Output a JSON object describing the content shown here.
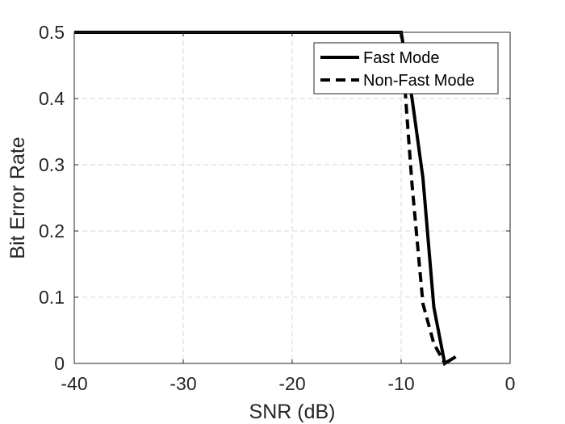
{
  "chart_data": {
    "type": "line",
    "xlabel": "SNR (dB)",
    "ylabel": "Bit Error Rate",
    "xlim": [
      -40,
      0
    ],
    "ylim": [
      0,
      0.5
    ],
    "x_ticks": [
      -40,
      -30,
      -20,
      -10,
      0
    ],
    "y_ticks": [
      0,
      0.1,
      0.2,
      0.3,
      0.4,
      0.5
    ],
    "x_tick_labels": [
      "-40",
      "-30",
      "-20",
      "-10",
      "0"
    ],
    "y_tick_labels": [
      "0",
      "0.1",
      "0.2",
      "0.3",
      "0.4",
      "0.5"
    ],
    "grid": true,
    "legend_position": "top-right",
    "series": [
      {
        "name": "Fast Mode",
        "style": "solid",
        "color": "#000000",
        "points": [
          [
            -40,
            0.5
          ],
          [
            -10,
            0.5
          ],
          [
            -9,
            0.4
          ],
          [
            -8,
            0.28
          ],
          [
            -7,
            0.085
          ],
          [
            -6,
            0.0
          ],
          [
            -5,
            0.01
          ]
        ]
      },
      {
        "name": "Non-Fast Mode",
        "style": "dashed",
        "color": "#000000",
        "points": [
          [
            -40,
            0.5
          ],
          [
            -10,
            0.5
          ],
          [
            -9.5,
            0.38
          ],
          [
            -9,
            0.27
          ],
          [
            -8,
            0.09
          ],
          [
            -7,
            0.03
          ],
          [
            -6,
            0.0
          ],
          [
            -5,
            0.01
          ]
        ]
      }
    ]
  }
}
